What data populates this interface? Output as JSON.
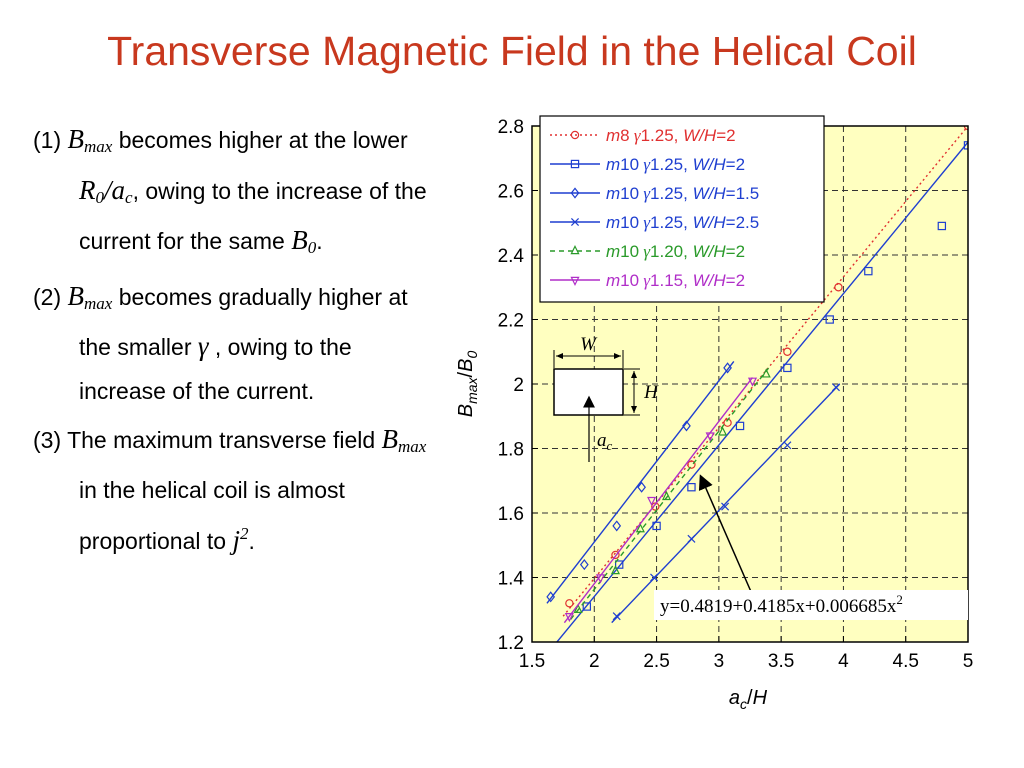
{
  "title": "Transverse Magnetic Field in the Helical Coil",
  "notes": [
    {
      "num": "(1) ",
      "sym": "B",
      "sym_sub": "max",
      "t1": " becomes higher at the lower ",
      "ratio_a": "R",
      "ratio_a_sub": "0",
      "ratio_slash": "/a",
      "ratio_b_sub": "c",
      "t2": ", owing to the increase of the current for the same ",
      "b0": "B",
      "b0_sub": "0",
      "t3": "."
    },
    {
      "num": "(2) ",
      "sym": "B",
      "sym_sub": "max",
      "t1": " becomes gradually higher at the smaller ",
      "gamma": "γ",
      "t2": " , owing to the increase of the current."
    },
    {
      "num": "(3) ",
      "t1": "The maximum transverse field ",
      "sym": "B",
      "sym_sub": "max",
      "t2": " in the helical coil is almost proportional to ",
      "j": "j",
      "j_sup": "2",
      "t3": "."
    }
  ],
  "inset": {
    "w": "W",
    "h": "H",
    "ac": "a",
    "ac_sub": "c"
  },
  "fit_equation": "y=0.4819+0.4185x+0.006685x",
  "fit_equation_sup": "2",
  "chart_data": {
    "type": "line",
    "xlabel": "a_c/H",
    "ylabel": "B_max/B_0",
    "xlim": [
      1.5,
      5
    ],
    "ylim": [
      1.2,
      2.8
    ],
    "xticks": [
      "1.5",
      "2",
      "2.5",
      "3",
      "3.5",
      "4",
      "4.5",
      "5"
    ],
    "yticks": [
      "1.2",
      "1.4",
      "1.6",
      "1.8",
      "2",
      "2.2",
      "2.4",
      "2.6",
      "2.8"
    ],
    "grid": true,
    "legend_position": "top-right",
    "series": [
      {
        "name": "m8 γ1.25, W/H=2",
        "label": {
          "m": "m",
          "n": "8",
          "g": "1.25,",
          "wh": "W/H",
          "v": "=2"
        },
        "color": "#e03030",
        "dash": "2 3",
        "marker": "circle",
        "line": [
          [
            1.75,
            1.28
          ],
          [
            5.0,
            2.8
          ]
        ],
        "points": [
          [
            1.8,
            1.32
          ],
          [
            2.17,
            1.47
          ],
          [
            2.49,
            1.62
          ],
          [
            2.78,
            1.75
          ],
          [
            3.07,
            1.88
          ],
          [
            3.55,
            2.1
          ],
          [
            3.96,
            2.3
          ],
          [
            5.0,
            2.8
          ]
        ]
      },
      {
        "name": "m10 γ1.25, W/H=2",
        "label": {
          "m": "m",
          "n": "10",
          "g": "1.25,",
          "wh": "W/H",
          "v": "=2"
        },
        "color": "#1f3fd0",
        "dash": "",
        "marker": "square",
        "line": [
          [
            1.7,
            1.2
          ],
          [
            5.0,
            2.75
          ]
        ],
        "points": [
          [
            1.94,
            1.31
          ],
          [
            2.2,
            1.44
          ],
          [
            2.5,
            1.56
          ],
          [
            2.78,
            1.68
          ],
          [
            3.17,
            1.87
          ],
          [
            3.55,
            2.05
          ],
          [
            3.89,
            2.2
          ],
          [
            4.2,
            2.35
          ],
          [
            4.79,
            2.49
          ],
          [
            5.0,
            2.74
          ]
        ]
      },
      {
        "name": "m10 γ1.25, W/H=1.5",
        "label": {
          "m": "m",
          "n": "10",
          "g": "1.25,",
          "wh": "W/H",
          "v": "=1.5"
        },
        "color": "#1f3fd0",
        "dash": "",
        "marker": "diamond",
        "line": [
          [
            1.62,
            1.32
          ],
          [
            3.12,
            2.07
          ]
        ],
        "points": [
          [
            1.65,
            1.34
          ],
          [
            1.92,
            1.44
          ],
          [
            2.18,
            1.56
          ],
          [
            2.38,
            1.68
          ],
          [
            2.74,
            1.87
          ],
          [
            3.07,
            2.05
          ]
        ]
      },
      {
        "name": "m10 γ1.25, W/H=2.5",
        "label": {
          "m": "m",
          "n": "10",
          "g": "1.25,",
          "wh": "W/H",
          "v": "=2.5"
        },
        "color": "#1f3fd0",
        "dash": "",
        "marker": "cross",
        "line": [
          [
            2.14,
            1.26
          ],
          [
            3.97,
            2.0
          ]
        ],
        "points": [
          [
            2.18,
            1.28
          ],
          [
            2.48,
            1.4
          ],
          [
            2.78,
            1.52
          ],
          [
            3.05,
            1.62
          ],
          [
            3.55,
            1.81
          ],
          [
            3.94,
            1.99
          ]
        ]
      },
      {
        "name": "m10 γ1.20, W/H=2",
        "label": {
          "m": "m",
          "n": "10",
          "g": "1.20,",
          "wh": "W/H",
          "v": "=2"
        },
        "color": "#2a9a2a",
        "dash": "5 4",
        "marker": "triangle-up",
        "line": [
          [
            1.81,
            1.27
          ],
          [
            3.4,
            2.05
          ]
        ],
        "points": [
          [
            1.87,
            1.3
          ],
          [
            2.17,
            1.42
          ],
          [
            2.37,
            1.55
          ],
          [
            2.58,
            1.65
          ],
          [
            3.03,
            1.85
          ],
          [
            3.38,
            2.03
          ]
        ]
      },
      {
        "name": "m10 γ1.15, W/H=2",
        "label": {
          "m": "m",
          "n": "10",
          "g": "1.15,",
          "wh": "W/H",
          "v": "=2"
        },
        "color": "#b02ec8",
        "dash": "",
        "marker": "triangle-down",
        "line": [
          [
            1.76,
            1.26
          ],
          [
            3.27,
            2.02
          ]
        ],
        "points": [
          [
            1.8,
            1.28
          ],
          [
            2.05,
            1.4
          ],
          [
            2.46,
            1.64
          ],
          [
            2.93,
            1.84
          ],
          [
            3.27,
            2.01
          ]
        ]
      }
    ]
  }
}
